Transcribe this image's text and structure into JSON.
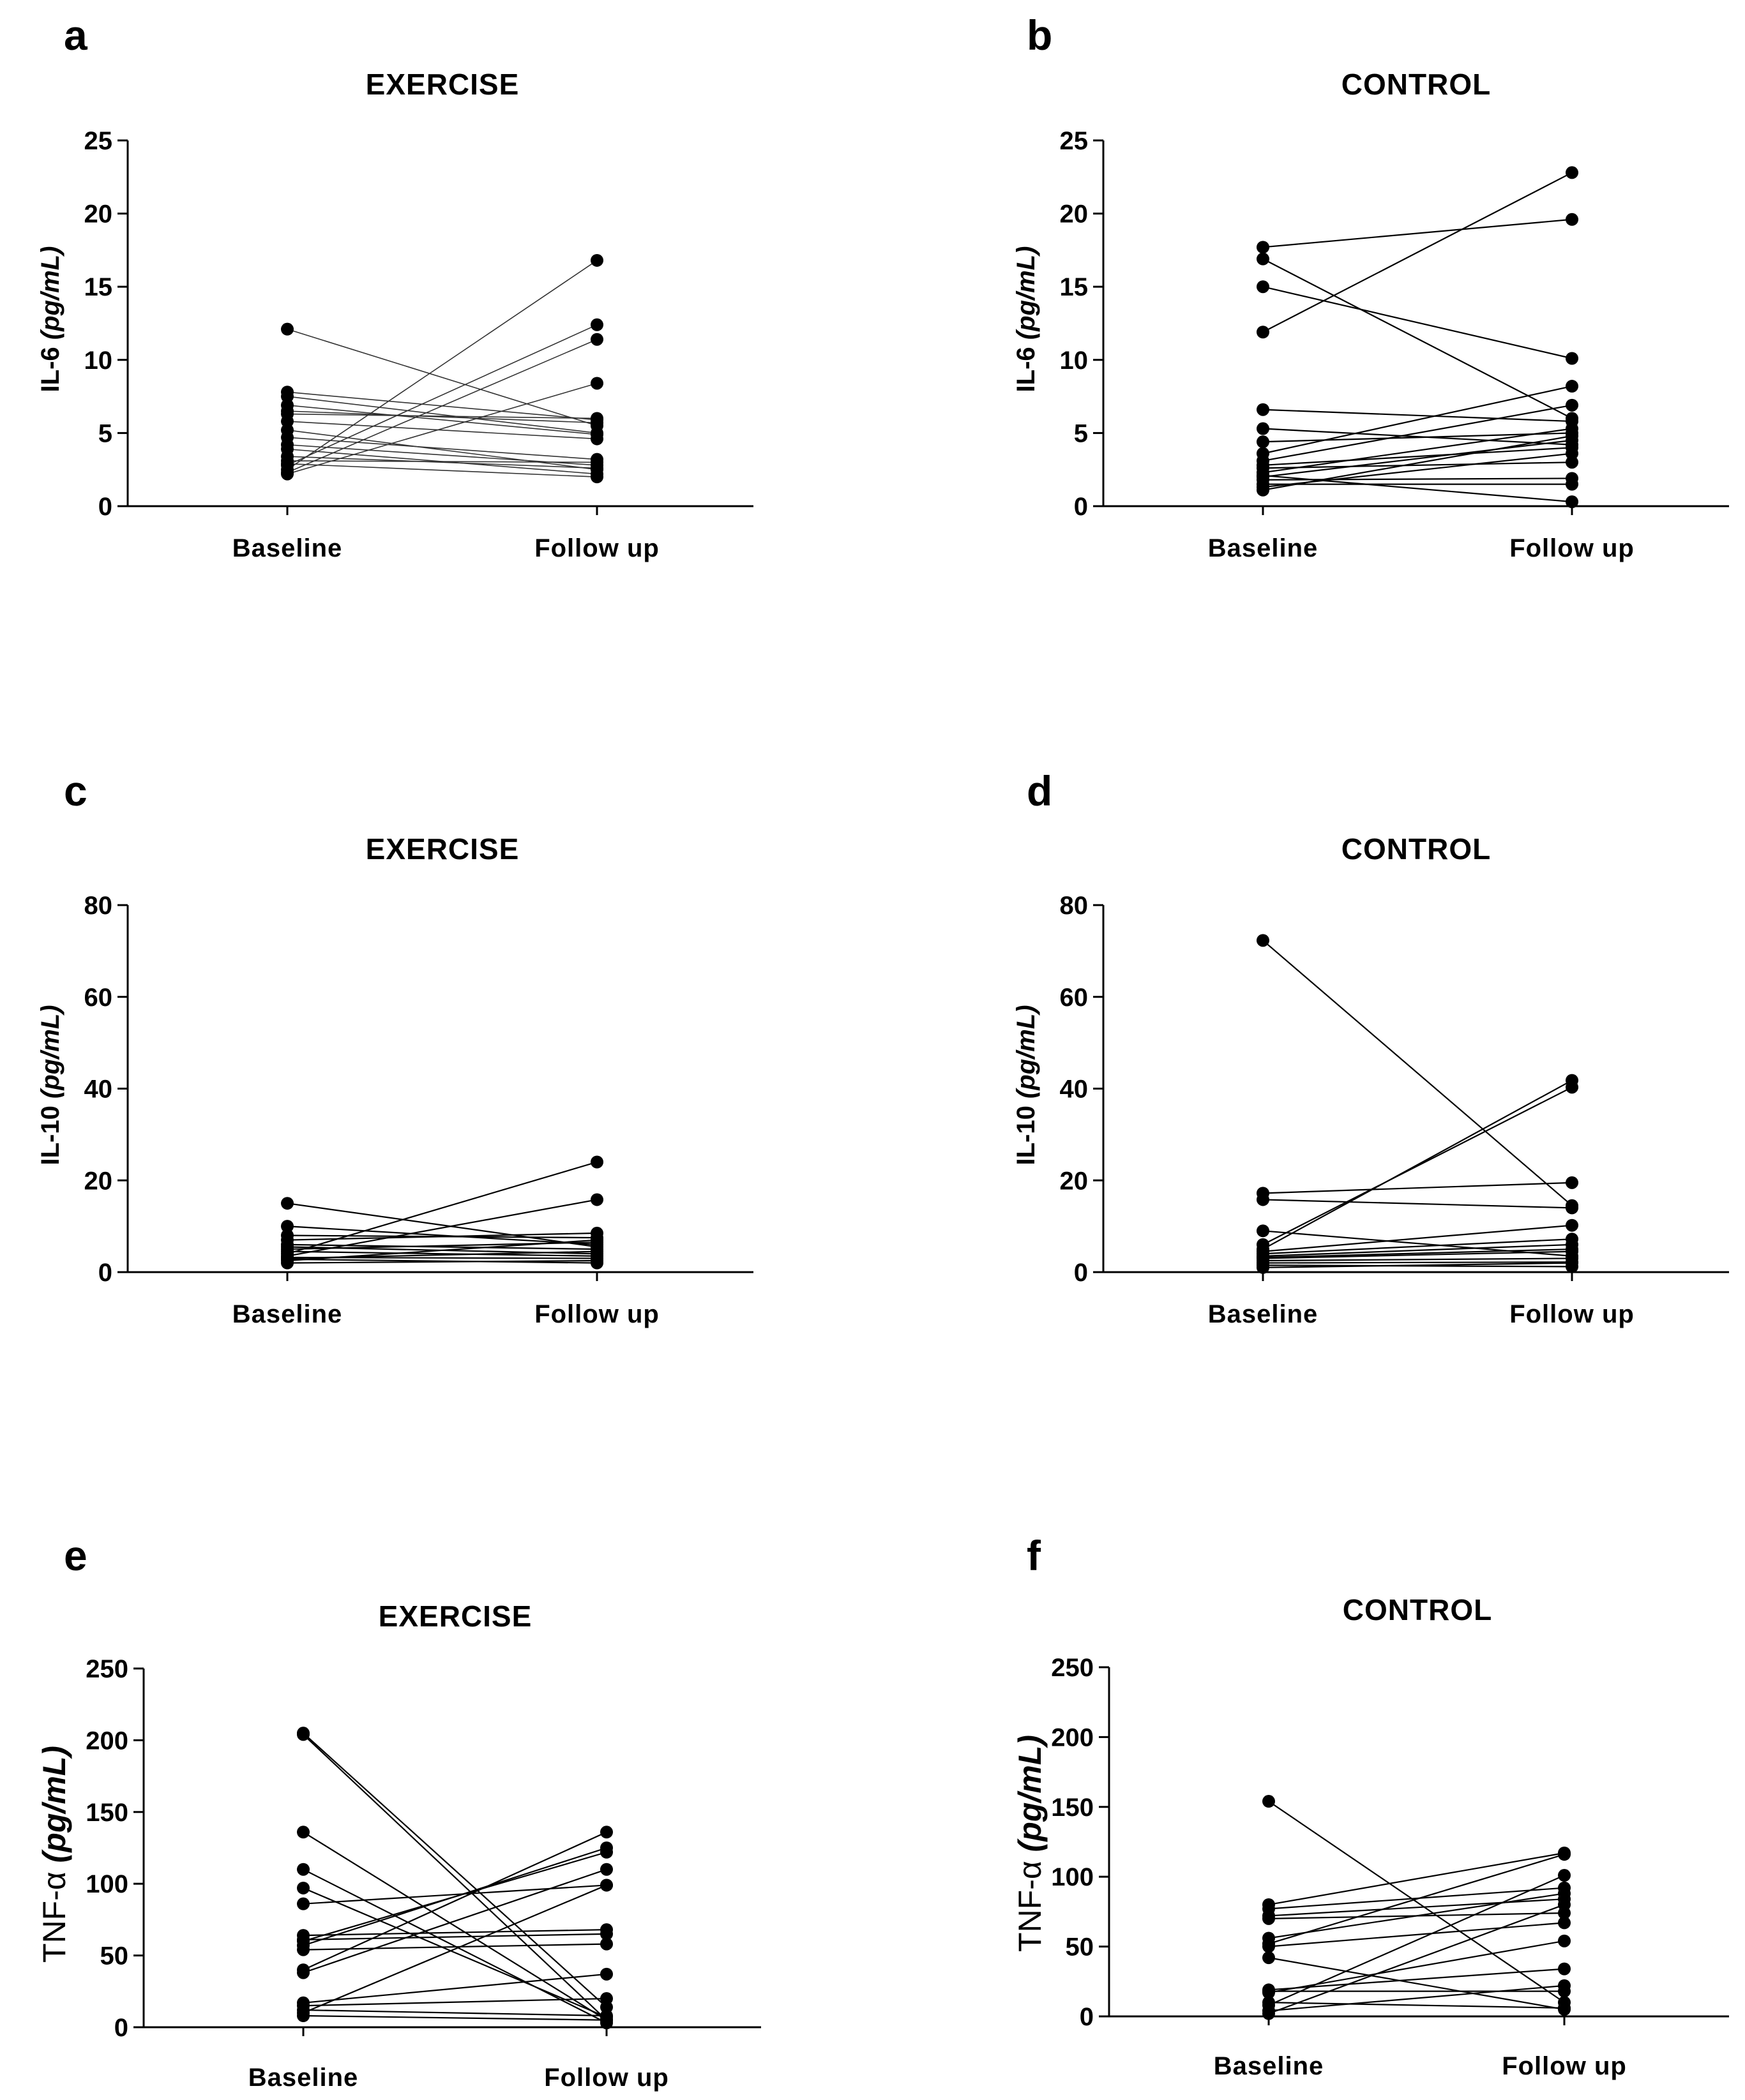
{
  "chart_data": [
    {
      "type": "line",
      "panel": "a",
      "title": "EXERCISE",
      "ylabel_main": "IL-6",
      "ylabel_unit": "(pg/mL)",
      "categories": [
        "Baseline",
        "Follow up"
      ],
      "ylim": [
        0,
        25
      ],
      "yticks": [
        0,
        5,
        10,
        15,
        20,
        25
      ],
      "pairs": [
        [
          12.1,
          5.5
        ],
        [
          7.8,
          5.9
        ],
        [
          7.5,
          5.0
        ],
        [
          6.5,
          5.7
        ],
        [
          6.3,
          6.0
        ],
        [
          5.8,
          4.6
        ],
        [
          5.2,
          2.5
        ],
        [
          4.7,
          3.2
        ],
        [
          4.2,
          2.8
        ],
        [
          3.9,
          2.2
        ],
        [
          3.4,
          2.6
        ],
        [
          3.1,
          3.0
        ],
        [
          2.9,
          2.0
        ],
        [
          2.8,
          12.4
        ],
        [
          2.5,
          16.8
        ],
        [
          2.3,
          11.4
        ],
        [
          2.2,
          8.4
        ],
        [
          6.9,
          4.9
        ]
      ]
    },
    {
      "type": "line",
      "panel": "b",
      "title": "CONTROL",
      "ylabel_main": "IL-6",
      "ylabel_unit": "(pg/mL)",
      "categories": [
        "Baseline",
        "Follow up"
      ],
      "ylim": [
        0,
        25
      ],
      "yticks": [
        0,
        5,
        10,
        15,
        20,
        25
      ],
      "pairs": [
        [
          17.7,
          19.6
        ],
        [
          16.9,
          6.0
        ],
        [
          15.0,
          10.1
        ],
        [
          11.9,
          22.8
        ],
        [
          6.6,
          5.8
        ],
        [
          5.3,
          4.2
        ],
        [
          4.4,
          5.0
        ],
        [
          3.6,
          8.2
        ],
        [
          3.1,
          6.9
        ],
        [
          2.8,
          4.0
        ],
        [
          2.6,
          3.0
        ],
        [
          2.3,
          5.3
        ],
        [
          2.0,
          4.5
        ],
        [
          1.8,
          1.9
        ],
        [
          1.5,
          1.5
        ],
        [
          1.3,
          3.6
        ],
        [
          1.1,
          4.8
        ],
        [
          2.1,
          0.3
        ]
      ]
    },
    {
      "type": "line",
      "panel": "c",
      "title": "EXERCISE",
      "ylabel_main": "IL-10",
      "ylabel_unit": "(pg/mL)",
      "categories": [
        "Baseline",
        "Follow up"
      ],
      "ylim": [
        0,
        80
      ],
      "yticks": [
        0,
        20,
        40,
        60,
        80
      ],
      "pairs": [
        [
          15.0,
          5.5
        ],
        [
          10.0,
          6.0
        ],
        [
          8.0,
          7.5
        ],
        [
          7.0,
          8.5
        ],
        [
          6.0,
          5.0
        ],
        [
          5.5,
          4.0
        ],
        [
          5.0,
          6.5
        ],
        [
          4.5,
          3.5
        ],
        [
          4.0,
          24.0
        ],
        [
          3.5,
          15.8
        ],
        [
          3.2,
          3.0
        ],
        [
          3.0,
          4.5
        ],
        [
          2.8,
          2.0
        ],
        [
          2.5,
          7.0
        ],
        [
          2.0,
          2.5
        ]
      ]
    },
    {
      "type": "line",
      "panel": "d",
      "title": "CONTROL",
      "ylabel_main": "IL-10",
      "ylabel_unit": "(pg/mL)",
      "categories": [
        "Baseline",
        "Follow up"
      ],
      "ylim": [
        0,
        80
      ],
      "yticks": [
        0,
        20,
        40,
        60,
        80
      ],
      "pairs": [
        [
          72.3,
          14.5
        ],
        [
          17.2,
          19.5
        ],
        [
          15.8,
          14.0
        ],
        [
          9.0,
          3.5
        ],
        [
          6.0,
          40.3
        ],
        [
          5.0,
          41.8
        ],
        [
          4.5,
          10.2
        ],
        [
          4.0,
          7.2
        ],
        [
          3.5,
          6.0
        ],
        [
          3.2,
          5.0
        ],
        [
          3.0,
          4.5
        ],
        [
          2.5,
          3.0
        ],
        [
          2.0,
          2.2
        ],
        [
          1.5,
          1.2
        ],
        [
          1.0,
          2.0
        ]
      ]
    },
    {
      "type": "line",
      "panel": "e",
      "title": "EXERCISE",
      "ylabel_main": "TNF-α",
      "ylabel_unit": "(pg/mL)",
      "categories": [
        "Baseline",
        "Follow up"
      ],
      "ylim": [
        0,
        250
      ],
      "yticks": [
        0,
        50,
        100,
        150,
        200,
        250
      ],
      "pairs": [
        [
          205,
          14
        ],
        [
          204,
          5
        ],
        [
          136,
          5
        ],
        [
          110,
          3
        ],
        [
          97,
          7
        ],
        [
          86,
          99
        ],
        [
          64,
          68
        ],
        [
          61,
          65
        ],
        [
          60,
          122
        ],
        [
          57,
          125
        ],
        [
          54,
          58
        ],
        [
          40,
          136
        ],
        [
          38,
          110
        ],
        [
          17,
          37
        ],
        [
          15,
          20
        ],
        [
          12,
          8
        ],
        [
          10,
          99
        ],
        [
          8,
          5
        ]
      ]
    },
    {
      "type": "line",
      "panel": "f",
      "title": "CONTROL",
      "ylabel_main": "TNF-α",
      "ylabel_unit": "(pg/mL)",
      "categories": [
        "Baseline",
        "Follow up"
      ],
      "ylim": [
        0,
        250
      ],
      "yticks": [
        0,
        50,
        100,
        150,
        200,
        250
      ],
      "pairs": [
        [
          154,
          10
        ],
        [
          80,
          117
        ],
        [
          77,
          92
        ],
        [
          72,
          84
        ],
        [
          70,
          74
        ],
        [
          56,
          88
        ],
        [
          52,
          116
        ],
        [
          50,
          67
        ],
        [
          42,
          5
        ],
        [
          19,
          34
        ],
        [
          17,
          54
        ],
        [
          8,
          101
        ],
        [
          4,
          22
        ],
        [
          2,
          80
        ],
        [
          10,
          6
        ],
        [
          18,
          18
        ]
      ]
    }
  ]
}
